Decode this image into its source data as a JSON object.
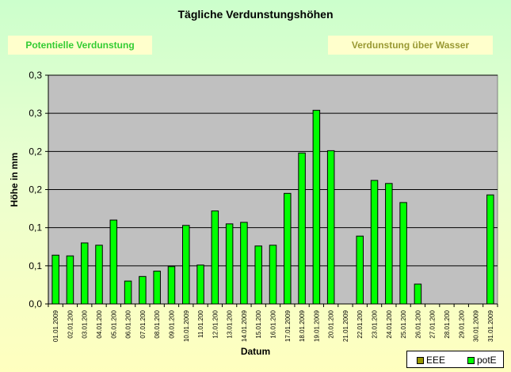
{
  "tabs": {
    "left": "Potentielle Verdunstung",
    "right": "Verdunstung über Wasser"
  },
  "colors": {
    "plot_bg": "#c0c0c0",
    "bar_fill": "#00ff00",
    "bar_stroke": "#000000",
    "eee_swatch": "#999900",
    "pote_swatch": "#00ff00"
  },
  "chart_data": {
    "type": "bar",
    "title": "Tägliche Verdunstungshöhen",
    "xlabel": "Datum",
    "ylabel": "Höhe in mm",
    "ylim": [
      0,
      0.3
    ],
    "y_ticks": [
      0,
      0.05,
      0.1,
      0.15,
      0.2,
      0.25,
      0.3
    ],
    "y_tick_labels": [
      "0,0",
      "0,1",
      "0,1",
      "0,2",
      "0,2",
      "0,3",
      "0,3"
    ],
    "grid": true,
    "legend": "bottom-right",
    "categories": [
      "01.01.2009",
      "02.01.200",
      "03.01.200",
      "04.01.200",
      "05.01.200",
      "06.01.200",
      "07.01.200",
      "08.01.200",
      "09.01.200",
      "10.01.2009",
      "11.01.200",
      "12.01.200",
      "13.01.200",
      "14.01.2009",
      "15.01.200",
      "16.01.200",
      "17.01.2009",
      "18.01.2009",
      "19.01.2009",
      "20.01.200",
      "21.01.2009",
      "22.01.200",
      "23.01.200",
      "24.01.200",
      "25.01.200",
      "26.01.200",
      "27.01.200",
      "28.01.200",
      "29.01.200",
      "30.01.2009",
      "31.01.2009"
    ],
    "series": [
      {
        "name": "EEE",
        "values": [
          null,
          null,
          null,
          null,
          null,
          null,
          null,
          null,
          null,
          null,
          null,
          null,
          null,
          null,
          null,
          null,
          null,
          null,
          null,
          null,
          null,
          null,
          null,
          null,
          null,
          null,
          null,
          null,
          null,
          null,
          null
        ]
      },
      {
        "name": "potE",
        "values": [
          0.064,
          0.063,
          0.08,
          0.077,
          0.11,
          0.03,
          0.036,
          0.043,
          0.049,
          0.103,
          0.051,
          0.122,
          0.105,
          0.107,
          0.076,
          0.077,
          0.145,
          0.198,
          0.254,
          0.201,
          0,
          0.089,
          0.162,
          0.158,
          0.133,
          0.026,
          0,
          0,
          0,
          0,
          0.143
        ]
      }
    ]
  }
}
